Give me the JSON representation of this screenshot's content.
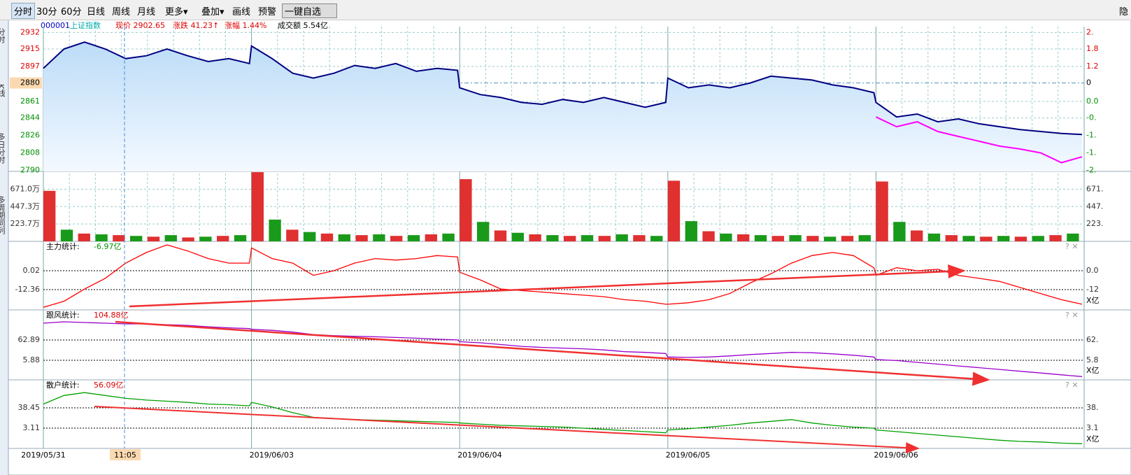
{
  "toolbar": {
    "items": [
      "分时",
      "30分",
      "60分",
      "日线",
      "周线",
      "月线",
      "更多▾",
      "叠加▾",
      "画线",
      "预警"
    ],
    "button": "一键自选",
    "right": "隐"
  },
  "sidebar": [
    "分时",
    "K线",
    "多日分时",
    "多周期同列"
  ],
  "info": {
    "code": "000001",
    "name": "上证指数",
    "price": "现价 2902.65",
    "change": "涨跌 41.23↑",
    "pct": "涨幅 1.44%",
    "turnover": "成交额 5.54亿"
  },
  "dates": [
    "2019/05/31",
    "2019/06/03",
    "2019/06/04",
    "2019/06/05",
    "2019/06/06"
  ],
  "cursor": "11:05",
  "chart_data": [
    {
      "type": "line",
      "name": "price",
      "ylim": [
        2789,
        2938
      ],
      "yticks": [
        2932,
        2915,
        2897,
        2880,
        2861,
        2844,
        2826,
        2808,
        2790
      ],
      "right_labels": [
        "2.",
        "1.8",
        "1.2",
        "0",
        "0.0",
        "-0.",
        "-1.",
        "-1.",
        "-2."
      ],
      "up_color": "#e00000",
      "down_color": "#009000",
      "base": 2880,
      "series": [
        {
          "name": "上证指数",
          "color": "#000080",
          "values": [
            2895,
            2915,
            2922,
            2915,
            2905,
            2908,
            2915,
            2908,
            2902,
            2905,
            2900,
            2918,
            2905,
            2890,
            2885,
            2890,
            2898,
            2895,
            2900,
            2892,
            2895,
            2893,
            2875,
            2868,
            2865,
            2860,
            2858,
            2863,
            2860,
            2865,
            2860,
            2855,
            2860,
            2885,
            2875,
            2878,
            2875,
            2880,
            2887,
            2885,
            2883,
            2878,
            2875,
            2870,
            2860,
            2845,
            2848,
            2840,
            2843,
            2838,
            2835,
            2832,
            2830,
            2828,
            2827
          ]
        },
        {
          "name": "叠加",
          "color": "#ff00ff",
          "start": 44,
          "values": [
            2845,
            2835,
            2840,
            2830,
            2825,
            2820,
            2815,
            2812,
            2808,
            2798,
            2804
          ]
        }
      ]
    },
    {
      "type": "bar",
      "name": "volume",
      "ylim": [
        0,
        900
      ],
      "yticks": [
        {
          "value": 223.7,
          "label": "223.7万"
        },
        {
          "value": 447.3,
          "label": "447.3万"
        },
        {
          "value": 671.0,
          "label": "671.0万"
        }
      ],
      "right_labels": [
        "223.",
        "447.",
        "671."
      ],
      "colors": [
        "#e03030",
        "#1a9a1a"
      ],
      "values": [
        650,
        150,
        100,
        90,
        80,
        70,
        60,
        80,
        50,
        60,
        70,
        80,
        890,
        280,
        150,
        120,
        100,
        90,
        80,
        90,
        70,
        80,
        90,
        100,
        800,
        250,
        140,
        110,
        90,
        80,
        70,
        80,
        70,
        90,
        80,
        70,
        780,
        260,
        130,
        100,
        90,
        80,
        70,
        80,
        70,
        60,
        70,
        80,
        770,
        250,
        140,
        100,
        80,
        70,
        60,
        70,
        60,
        70,
        80,
        100
      ]
    },
    {
      "type": "line",
      "name": "main",
      "title": "主力统计:",
      "value_label": "-6.97亿",
      "value_color": "#009000",
      "ylim": [
        -25.7,
        19.3
      ],
      "yticks": [
        0.02,
        -12.36
      ],
      "right_labels": [
        "0.0",
        "-12"
      ],
      "unit": "X亿",
      "series": [
        {
          "color": "#ff0000",
          "values": [
            -24,
            -20,
            -12,
            -5,
            5,
            12,
            17,
            13,
            8,
            5,
            5,
            15,
            8,
            5,
            -3,
            0,
            5,
            8,
            7,
            8,
            10,
            9,
            -1,
            -6,
            -12,
            -13,
            -14,
            -15,
            -16,
            -17,
            -19,
            -20,
            -22,
            -22,
            -21,
            -19,
            -15,
            -8,
            -2,
            5,
            10,
            12,
            10,
            2,
            -3,
            2,
            0,
            1,
            -3,
            -5,
            -7,
            -11,
            -15,
            -19,
            -22
          ]
        }
      ]
    },
    {
      "type": "line",
      "name": "follow",
      "title": "跟风统计:",
      "value_label": "104.88亿",
      "value_color": "#e00000",
      "ylim": [
        -49.2,
        147.4
      ],
      "yticks": [
        62.89,
        5.88
      ],
      "right_labels": [
        "62.",
        "5.8"
      ],
      "unit": "X亿",
      "series": [
        {
          "color": "#9900cc",
          "values": [
            110,
            114,
            112,
            110,
            108,
            108,
            106,
            104,
            100,
            97,
            95,
            93,
            90,
            85,
            78,
            75,
            73,
            72,
            70,
            68,
            65,
            63,
            58,
            55,
            50,
            45,
            42,
            40,
            38,
            35,
            30,
            28,
            25,
            15,
            14,
            15,
            18,
            22,
            25,
            28,
            27,
            24,
            20,
            15,
            8,
            5,
            0,
            -5,
            -10,
            -15,
            -20,
            -25,
            -30,
            -35,
            -40
          ]
        }
      ]
    },
    {
      "type": "line",
      "name": "retail",
      "title": "散户统计:",
      "value_label": "56.09亿",
      "value_color": "#e00000",
      "ylim": [
        -32.2,
        87.2
      ],
      "yticks": [
        38.45,
        3.11
      ],
      "right_labels": [
        "38.",
        "3.1"
      ],
      "unit": "X亿",
      "series": [
        {
          "color": "#00a000",
          "values": [
            45,
            60,
            65,
            60,
            55,
            52,
            50,
            48,
            45,
            44,
            42,
            48,
            40,
            30,
            22,
            20,
            18,
            17,
            16,
            15,
            14,
            13,
            12,
            10,
            8,
            7,
            6,
            5,
            3,
            1,
            -1,
            -3,
            -5,
            0,
            2,
            5,
            8,
            12,
            15,
            18,
            12,
            8,
            5,
            3,
            0,
            -3,
            -6,
            -9,
            -12,
            -15,
            -18,
            -20,
            -21,
            -23,
            -24
          ]
        }
      ]
    }
  ]
}
